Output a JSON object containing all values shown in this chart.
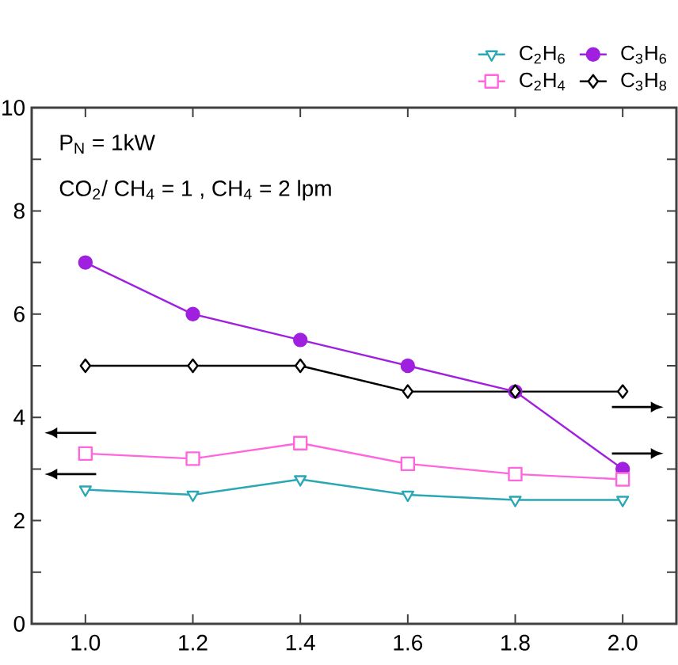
{
  "chart_data": {
    "type": "line",
    "x": [
      1.0,
      1.2,
      1.4,
      1.6,
      1.8,
      2.0
    ],
    "xlim": [
      0.9,
      2.1
    ],
    "xticks": [
      {
        "value": 1.0,
        "label": "1.0"
      },
      {
        "value": 1.2,
        "label": "1.2"
      },
      {
        "value": 1.4,
        "label": "1.4"
      },
      {
        "value": 1.6,
        "label": "1.6"
      },
      {
        "value": 1.8,
        "label": "1.8"
      },
      {
        "value": 2.0,
        "label": "2.0"
      }
    ],
    "ylim": [
      0,
      10
    ],
    "yticks": [
      0,
      {
        "value": 1,
        "label": null
      },
      2,
      {
        "value": 3,
        "label": null
      },
      4,
      {
        "value": 5,
        "label": null
      },
      6,
      {
        "value": 7,
        "label": null
      },
      8,
      {
        "value": 9,
        "label": null
      },
      10
    ],
    "series": [
      {
        "name": "C$_{2}$H$_{6}$",
        "color": "#2aa7b5",
        "marker": "triangle",
        "values": [
          2.6,
          2.5,
          2.8,
          2.5,
          2.4,
          2.4
        ]
      },
      {
        "name": "C$_{3}$H$_{6}$",
        "color": "#a020e0",
        "marker": "circle",
        "values": [
          7.0,
          6.0,
          5.5,
          5.0,
          4.5,
          3.0
        ]
      },
      {
        "name": "C$_{2}$H$_{4}$",
        "color": "#ff66dd",
        "marker": "square",
        "values": [
          3.3,
          3.2,
          3.5,
          3.1,
          2.9,
          2.8
        ]
      },
      {
        "name": "C$_{3}$H$_{8}$",
        "color": "#000000",
        "marker": "diamond",
        "values": [
          5.0,
          5.0,
          5.0,
          4.5,
          4.5,
          4.5
        ]
      }
    ],
    "annotations": [
      "P$_{N}$ = 1kW",
      "CO$_{2}$/ CH$_{4}$ = 1 ,   CH$_{4}$ = 2 lpm"
    ],
    "legend": "top right",
    "grid": false
  }
}
